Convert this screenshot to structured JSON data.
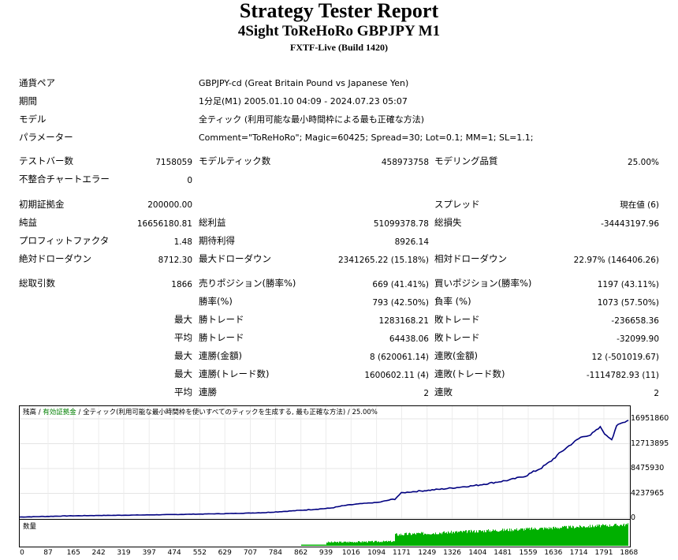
{
  "report": {
    "title": "Strategy Tester Report",
    "subtitle": "4Sight ToReHoRo GBPJPY M1",
    "build": "FXTF-Live (Build 1420)"
  },
  "info": [
    {
      "label": "通貨ペア",
      "value": "GBPJPY-cd (Great Britain Pound vs Japanese Yen)"
    },
    {
      "label": "期間",
      "value": "1分足(M1) 2005.01.10 04:09 - 2024.07.23 05:07"
    },
    {
      "label": "モデル",
      "value": "全ティック (利用可能な最小時間枠による最も正確な方法)"
    },
    {
      "label": "パラメーター",
      "value": "Comment=\"ToReHoRo\"; Magic=60425; Spread=30; Lot=0.1; MM=1; SL=1.1;"
    }
  ],
  "stats": {
    "bars_label": "テストバー数",
    "bars": "7158059",
    "ticks_label": "モデルティック数",
    "ticks": "458973758",
    "quality_label": "モデリング品質",
    "quality": "25.00%",
    "mismatch_label": "不整合チャートエラー",
    "mismatch": "0",
    "deposit_label": "初期証拠金",
    "deposit": "200000.00",
    "spread_label": "スプレッド",
    "spread": "現在値 (6)",
    "net_label": "純益",
    "net": "16656180.81",
    "gross_profit_label": "総利益",
    "gross_profit": "51099378.78",
    "gross_loss_label": "総損失",
    "gross_loss": "-34443197.96",
    "pf_label": "プロフィットファクタ",
    "pf": "1.48",
    "expected_label": "期待利得",
    "expected": "8926.14",
    "abs_dd_label": "絶対ドローダウン",
    "abs_dd": "8712.30",
    "max_dd_label": "最大ドローダウン",
    "max_dd": "2341265.22 (15.18%)",
    "rel_dd_label": "相対ドローダウン",
    "rel_dd": "22.97% (146406.26)",
    "total_trades_label": "総取引数",
    "total_trades": "1866",
    "short_label": "売りポジション(勝率%)",
    "short": "669 (41.41%)",
    "long_label": "買いポジション(勝率%)",
    "long": "1197 (43.11%)",
    "win_rate_label": "勝率(%)",
    "win_rate": "793 (42.50%)",
    "loss_rate_label": "負率 (%)",
    "loss_rate": "1073 (57.50%)",
    "max_label": "最大",
    "avg_label": "平均",
    "win_trade_label": "勝トレード",
    "loss_trade_label": "敗トレード",
    "max_win": "1283168.21",
    "max_loss": "-236658.36",
    "avg_win": "64438.06",
    "avg_loss": "-32099.90",
    "cons_win_money_label": "連勝(金額)",
    "cons_win_money": "8 (620061.14)",
    "cons_loss_money_label": "連敗(金額)",
    "cons_loss_money": "12 (-501019.67)",
    "cons_win_count_label": "連勝(トレード数)",
    "cons_win_count": "1600602.11 (4)",
    "cons_loss_count_label": "連敗(トレード数)",
    "cons_loss_count": "-1114782.93 (11)",
    "avg_win_streak_label": "連勝",
    "avg_win_streak": "2",
    "avg_loss_streak_label": "連敗",
    "avg_loss_streak": "2"
  },
  "chart": {
    "legend_balance": "残高",
    "legend_sep1": " / ",
    "legend_equity": "有効証拠金",
    "legend_sep2": " / ",
    "legend_model": "全ティック(利用可能な最小時間枠を使いすべてのティックを生成する, 最も正確な方法)",
    "legend_quality": " / 25.00%",
    "volume_label": "数量",
    "line_color": "#000080",
    "volume_color": "#00b000"
  },
  "chart_data": {
    "type": "line",
    "y_ticks": [
      "16951860",
      "12713895",
      "8475930",
      "4237965",
      "0"
    ],
    "x_ticks": [
      "0",
      "87",
      "165",
      "242",
      "319",
      "397",
      "474",
      "552",
      "629",
      "707",
      "784",
      "862",
      "939",
      "1016",
      "1094",
      "1171",
      "1249",
      "1326",
      "1404",
      "1481",
      "1559",
      "1636",
      "1714",
      "1791",
      "1868"
    ],
    "ylim": [
      0,
      16951860
    ],
    "xlim": [
      0,
      1866
    ],
    "x": [
      0,
      150,
      300,
      450,
      550,
      650,
      750,
      850,
      950,
      1000,
      1050,
      1100,
      1150,
      1170,
      1200,
      1300,
      1400,
      1500,
      1550,
      1600,
      1630,
      1660,
      1690,
      1720,
      1750,
      1780,
      1800,
      1815,
      1830,
      1845,
      1866
    ],
    "y": [
      200000,
      400000,
      500000,
      600000,
      700000,
      800000,
      950000,
      1300000,
      1700000,
      2200000,
      2500000,
      2700000,
      3300000,
      4300000,
      4500000,
      5000000,
      5600000,
      6500000,
      7200000,
      8600000,
      9800000,
      11300000,
      12600000,
      13800000,
      14200000,
      15500000,
      14000000,
      13500000,
      15800000,
      16200000,
      16700000
    ],
    "volume_start_x": 862
  }
}
